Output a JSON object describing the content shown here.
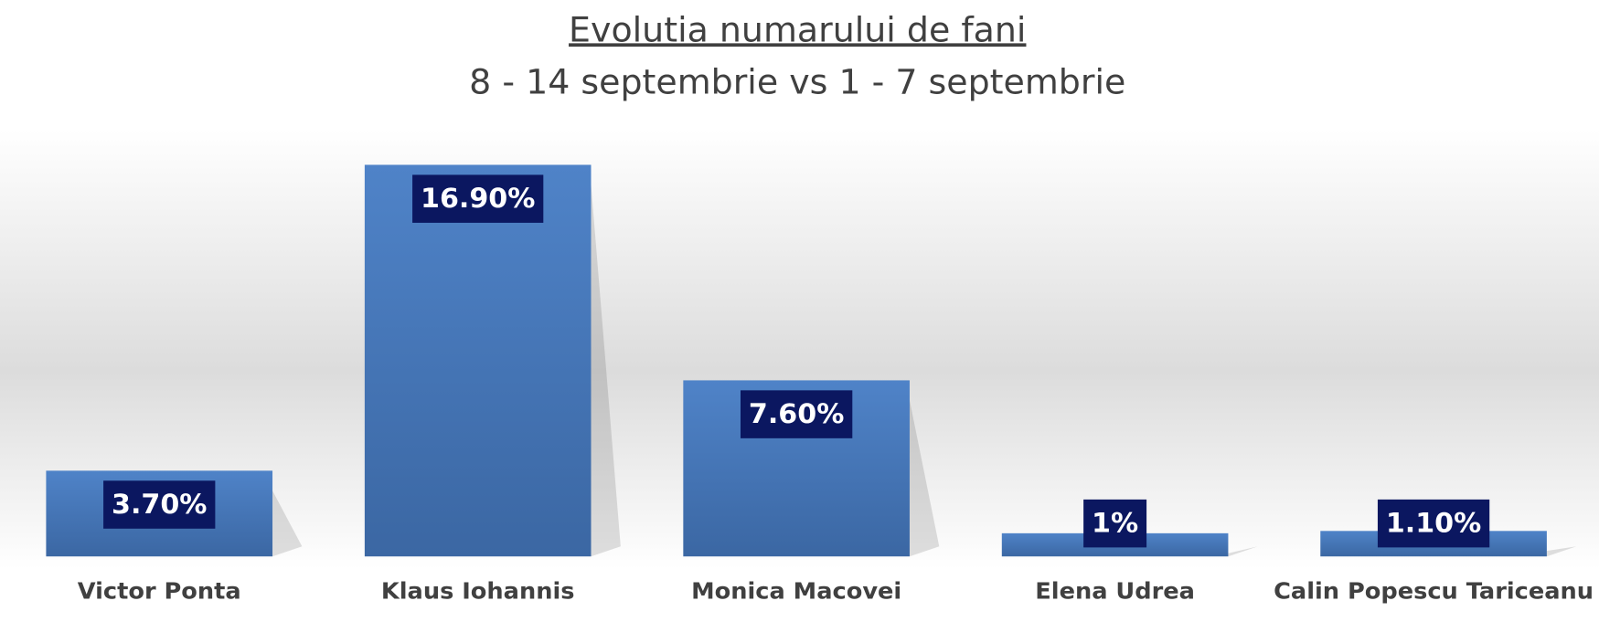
{
  "chart_data": {
    "type": "bar",
    "title": "Evolutia numarului de fani",
    "subtitle": "8 - 14 septembrie vs 1 - 7 septembrie",
    "categories": [
      "Victor Ponta",
      "Klaus Iohannis",
      "Monica Macovei",
      "Elena Udrea",
      "Calin Popescu Tariceanu"
    ],
    "values": [
      3.7,
      16.9,
      7.6,
      1,
      1.1
    ],
    "value_labels": [
      "3.70%",
      "16.90%",
      "7.60%",
      "1%",
      "1.10%"
    ],
    "color": "#4a7ebf"
  }
}
